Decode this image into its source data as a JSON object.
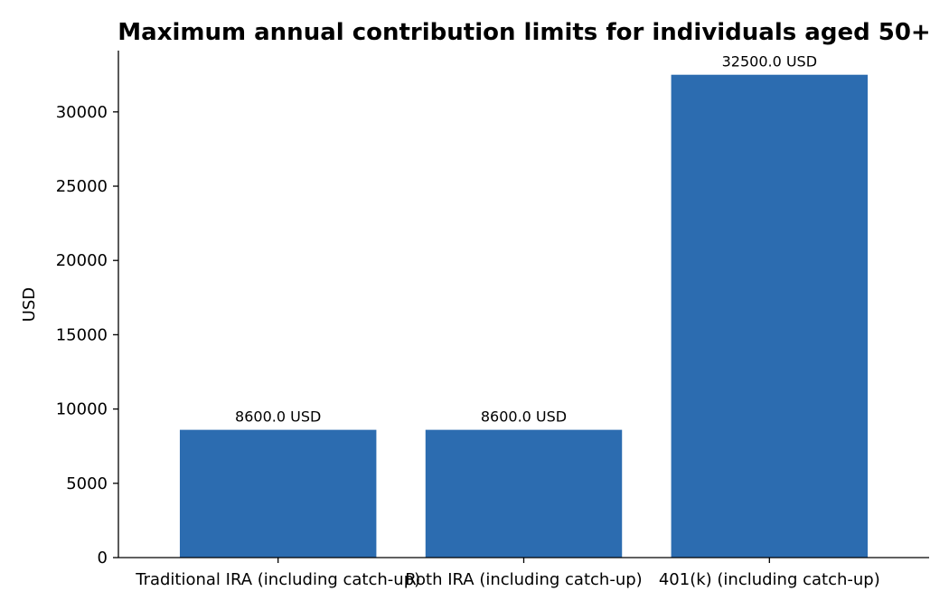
{
  "chart_data": {
    "type": "bar",
    "title": "Maximum annual contribution limits for individuals aged 50+",
    "xlabel": "",
    "ylabel": "USD",
    "categories": [
      "Traditional IRA (including catch-up)",
      "Roth IRA (including catch-up)",
      "401(k) (including catch-up)"
    ],
    "values": [
      8600.0,
      8600.0,
      32500.0
    ],
    "data_labels": [
      "8600.0 USD",
      "8600.0 USD",
      "32500.0 USD"
    ],
    "yticks": [
      0,
      5000,
      10000,
      15000,
      20000,
      25000,
      30000
    ],
    "ylim": [
      0,
      34125
    ],
    "bar_color": "#2c6cb0",
    "grid": false
  }
}
